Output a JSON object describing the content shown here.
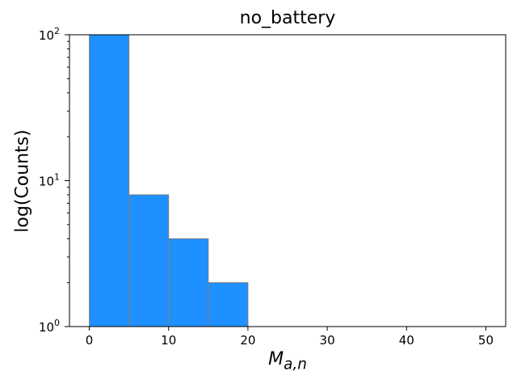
{
  "chart_data": {
    "type": "bar",
    "title": "no_battery",
    "xlabel": "M_{a,n}",
    "ylabel": "log(Counts)",
    "yscale": "log",
    "ylim": [
      1,
      100
    ],
    "xlim": [
      -2.5,
      52.5
    ],
    "x_ticks": [
      0,
      10,
      20,
      30,
      40,
      50
    ],
    "y_ticks": [
      {
        "base": "10",
        "exp": "0",
        "value": 1
      },
      {
        "base": "10",
        "exp": "1",
        "value": 10
      },
      {
        "base": "10",
        "exp": "2",
        "value": 100
      }
    ],
    "bins": [
      {
        "x0": 0,
        "x1": 5,
        "count": 100
      },
      {
        "x0": 5,
        "x1": 10,
        "count": 8
      },
      {
        "x0": 10,
        "x1": 15,
        "count": 4
      },
      {
        "x0": 15,
        "x1": 20,
        "count": 2
      },
      {
        "x0": 20,
        "x1": 25,
        "count": 1
      },
      {
        "x0": 25,
        "x1": 30,
        "count": 1
      },
      {
        "x0": 30,
        "x1": 35,
        "count": 1
      },
      {
        "x0": 35,
        "x1": 40,
        "count": 1
      },
      {
        "x0": 40,
        "x1": 45,
        "count": 1
      }
    ],
    "colors": {
      "bar_fill": "#1e90ff",
      "bar_edge": "#808080"
    },
    "grid": false
  }
}
